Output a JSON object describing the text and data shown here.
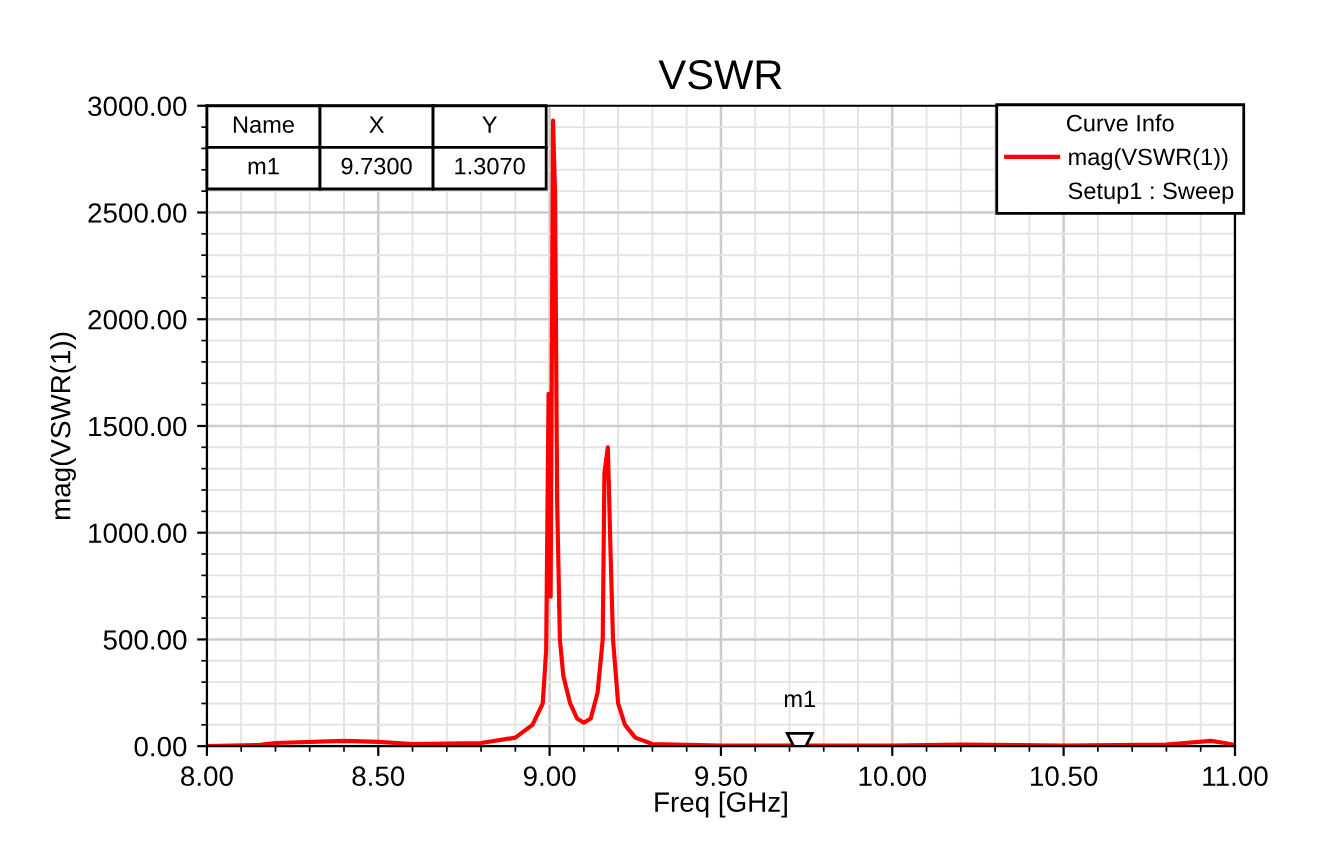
{
  "chart_data": {
    "type": "line",
    "title": "VSWR",
    "xlabel": "Freq [GHz]",
    "ylabel": "mag(VSWR(1))",
    "legend_title": "Curve Info",
    "x": [
      8.0,
      8.15,
      8.2,
      8.4,
      8.5,
      8.6,
      8.8,
      8.9,
      8.95,
      8.98,
      8.99,
      8.997,
      9.003,
      9.01,
      9.016,
      9.022,
      9.03,
      9.04,
      9.06,
      9.08,
      9.1,
      9.12,
      9.14,
      9.155,
      9.16,
      9.17,
      9.178,
      9.185,
      9.2,
      9.22,
      9.25,
      9.3,
      9.5,
      10.0,
      10.2,
      10.5,
      10.8,
      10.93,
      10.97,
      11.0
    ],
    "series": [
      {
        "name": "mag(VSWR(1))",
        "color": "#ff0000",
        "values": [
          0,
          5,
          15,
          25,
          20,
          10,
          15,
          40,
          100,
          200,
          450,
          1650,
          700,
          2930,
          2580,
          1150,
          500,
          330,
          200,
          130,
          110,
          130,
          250,
          500,
          1280,
          1400,
          900,
          500,
          200,
          100,
          40,
          10,
          3,
          3,
          8,
          3,
          8,
          25,
          15,
          5
        ]
      }
    ],
    "xlim": [
      8.0,
      11.0
    ],
    "xticks": [
      {
        "value": 8.0,
        "label": "8.00"
      },
      {
        "value": 8.5,
        "label": "8.50"
      },
      {
        "value": 9.0,
        "label": "9.00"
      },
      {
        "value": 9.5,
        "label": "9.50"
      },
      {
        "value": 10.0,
        "label": "10.00"
      },
      {
        "value": 10.5,
        "label": "10.50"
      },
      {
        "value": 11.0,
        "label": "11.00"
      }
    ],
    "ylim": [
      0,
      3000
    ],
    "yticks": [
      {
        "value": 0,
        "label": "0.00"
      },
      {
        "value": 500,
        "label": "500.00"
      },
      {
        "value": 1000,
        "label": "1000.00"
      },
      {
        "value": 1500,
        "label": "1500.00"
      },
      {
        "value": 2000,
        "label": "2000.00"
      },
      {
        "value": 2500,
        "label": "2500.00"
      },
      {
        "value": 3000,
        "label": "3000.00"
      }
    ],
    "grid": true,
    "legend": "top right",
    "marker": "none",
    "line_style": "solid",
    "annotations": [
      "Name",
      "X",
      "Y",
      "m1",
      "9.7300",
      "1.3070",
      "Setup1 : Sweep",
      {
        "text": "m1",
        "x": 9.73,
        "y": 1.307
      }
    ]
  }
}
